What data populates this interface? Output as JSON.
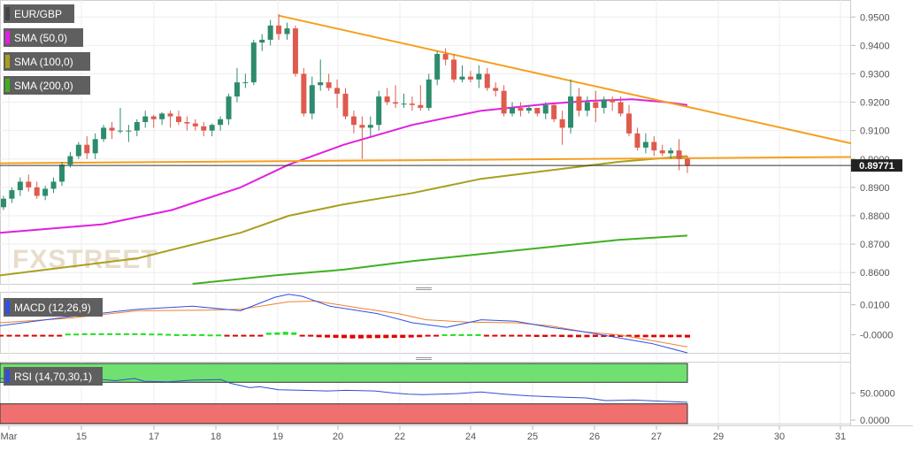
{
  "watermark": "FXSTREET",
  "colors": {
    "bull": "#2e8b6e",
    "bear": "#de5b4e",
    "sma50": "#e020e0",
    "sma100": "#a8a020",
    "sma200": "#40b020",
    "trend": "#f5a020",
    "macd": "#3050e0",
    "signal": "#f08030",
    "hist_pos": "#20e020",
    "hist_neg": "#e00000",
    "rsi": "#3050d0",
    "rsi_over": "#70e070",
    "rsi_under": "#f07070"
  },
  "chart_data": [
    {
      "type": "candlestick",
      "legend": [
        "EUR/GBP",
        "SMA (50,0)",
        "SMA (100,0)",
        "SMA (200,0)"
      ],
      "yticks": [
        "0.9500",
        "0.9400",
        "0.9300",
        "0.9200",
        "0.9100",
        "0.9000",
        "0.8900",
        "0.8800",
        "0.8700",
        "0.8600"
      ],
      "ylim": [
        0.856,
        0.956
      ],
      "last_price": "0.89771",
      "last_value": 0.89771,
      "x_range": [
        0,
        123
      ],
      "candles": [
        [
          0.883,
          0.887,
          0.882,
          0.886
        ],
        [
          0.886,
          0.89,
          0.8845,
          0.889
        ],
        [
          0.889,
          0.8935,
          0.887,
          0.892
        ],
        [
          0.892,
          0.8945,
          0.8885,
          0.89
        ],
        [
          0.89,
          0.892,
          0.886,
          0.887
        ],
        [
          0.887,
          0.8905,
          0.8855,
          0.8895
        ],
        [
          0.8895,
          0.8935,
          0.888,
          0.892
        ],
        [
          0.892,
          0.899,
          0.8905,
          0.898
        ],
        [
          0.898,
          0.9025,
          0.897,
          0.901
        ],
        [
          0.901,
          0.906,
          0.9,
          0.905
        ],
        [
          0.905,
          0.908,
          0.9,
          0.902
        ],
        [
          0.902,
          0.909,
          0.9,
          0.907
        ],
        [
          0.907,
          0.912,
          0.906,
          0.911
        ],
        [
          0.911,
          0.913,
          0.907,
          0.91
        ],
        [
          0.91,
          0.918,
          0.909,
          0.91
        ],
        [
          0.91,
          0.912,
          0.906,
          0.91
        ],
        [
          0.91,
          0.914,
          0.908,
          0.913
        ],
        [
          0.913,
          0.917,
          0.911,
          0.915
        ],
        [
          0.915,
          0.9155,
          0.911,
          0.914
        ],
        [
          0.914,
          0.9165,
          0.912,
          0.916
        ],
        [
          0.916,
          0.917,
          0.911,
          0.915
        ],
        [
          0.915,
          0.917,
          0.912,
          0.913
        ],
        [
          0.913,
          0.915,
          0.91,
          0.9125
        ],
        [
          0.9125,
          0.914,
          0.91,
          0.9115
        ],
        [
          0.9115,
          0.913,
          0.908,
          0.91
        ],
        [
          0.91,
          0.9125,
          0.908,
          0.912
        ],
        [
          0.912,
          0.915,
          0.91,
          0.914
        ],
        [
          0.914,
          0.923,
          0.912,
          0.922
        ],
        [
          0.922,
          0.932,
          0.92,
          0.927
        ],
        [
          0.927,
          0.93,
          0.925,
          0.927
        ],
        [
          0.927,
          0.942,
          0.926,
          0.941
        ],
        [
          0.941,
          0.944,
          0.938,
          0.942
        ],
        [
          0.942,
          0.949,
          0.94,
          0.947
        ],
        [
          0.947,
          0.951,
          0.942,
          0.944
        ],
        [
          0.944,
          0.948,
          0.942,
          0.946
        ],
        [
          0.946,
          0.947,
          0.929,
          0.93
        ],
        [
          0.93,
          0.932,
          0.915,
          0.916
        ],
        [
          0.916,
          0.929,
          0.914,
          0.926
        ],
        [
          0.926,
          0.935,
          0.924,
          0.927
        ],
        [
          0.927,
          0.93,
          0.924,
          0.925
        ],
        [
          0.925,
          0.928,
          0.918,
          0.923
        ],
        [
          0.923,
          0.925,
          0.914,
          0.915
        ],
        [
          0.915,
          0.917,
          0.909,
          0.912
        ],
        [
          0.912,
          0.915,
          0.9,
          0.911
        ],
        [
          0.911,
          0.915,
          0.908,
          0.912
        ],
        [
          0.912,
          0.924,
          0.91,
          0.922
        ],
        [
          0.922,
          0.925,
          0.919,
          0.92
        ],
        [
          0.92,
          0.926,
          0.918,
          0.9195
        ],
        [
          0.9195,
          0.923,
          0.918,
          0.9195
        ],
        [
          0.9195,
          0.922,
          0.917,
          0.919
        ],
        [
          0.919,
          0.926,
          0.917,
          0.918
        ],
        [
          0.918,
          0.93,
          0.917,
          0.928
        ],
        [
          0.928,
          0.938,
          0.926,
          0.937
        ],
        [
          0.937,
          0.939,
          0.933,
          0.935
        ],
        [
          0.935,
          0.937,
          0.927,
          0.928
        ],
        [
          0.928,
          0.933,
          0.927,
          0.929
        ],
        [
          0.929,
          0.931,
          0.927,
          0.928
        ],
        [
          0.928,
          0.933,
          0.925,
          0.93
        ],
        [
          0.93,
          0.932,
          0.924,
          0.925
        ],
        [
          0.925,
          0.927,
          0.922,
          0.924
        ],
        [
          0.924,
          0.926,
          0.915,
          0.916
        ],
        [
          0.916,
          0.92,
          0.915,
          0.918
        ],
        [
          0.918,
          0.92,
          0.915,
          0.917
        ],
        [
          0.917,
          0.919,
          0.916,
          0.918
        ],
        [
          0.918,
          0.918,
          0.915,
          0.916
        ],
        [
          0.916,
          0.92,
          0.914,
          0.919
        ],
        [
          0.919,
          0.92,
          0.913,
          0.914
        ],
        [
          0.914,
          0.917,
          0.905,
          0.911
        ],
        [
          0.911,
          0.928,
          0.909,
          0.922
        ],
        [
          0.922,
          0.925,
          0.915,
          0.917
        ],
        [
          0.917,
          0.922,
          0.915,
          0.92
        ],
        [
          0.92,
          0.924,
          0.913,
          0.918
        ],
        [
          0.918,
          0.922,
          0.916,
          0.921
        ],
        [
          0.921,
          0.922,
          0.917,
          0.92
        ],
        [
          0.92,
          0.922,
          0.915,
          0.916
        ],
        [
          0.916,
          0.919,
          0.908,
          0.909
        ],
        [
          0.909,
          0.911,
          0.903,
          0.904
        ],
        [
          0.904,
          0.909,
          0.902,
          0.906
        ],
        [
          0.906,
          0.908,
          0.901,
          0.903
        ],
        [
          0.903,
          0.905,
          0.901,
          0.902
        ],
        [
          0.902,
          0.904,
          0.9,
          0.903
        ],
        [
          0.903,
          0.907,
          0.896,
          0.9
        ],
        [
          0.9,
          0.901,
          0.895,
          0.8977
        ]
      ],
      "sma50": [
        [
          0,
          0.874
        ],
        [
          15,
          0.877
        ],
        [
          25,
          0.882
        ],
        [
          35,
          0.89
        ],
        [
          42,
          0.898
        ],
        [
          50,
          0.905
        ],
        [
          60,
          0.912
        ],
        [
          70,
          0.917
        ],
        [
          80,
          0.9195
        ],
        [
          86,
          0.9205
        ],
        [
          92,
          0.921
        ],
        [
          97,
          0.92
        ],
        [
          100,
          0.919
        ]
      ],
      "sma100": [
        [
          0,
          0.859
        ],
        [
          20,
          0.865
        ],
        [
          35,
          0.874
        ],
        [
          42,
          0.88
        ],
        [
          50,
          0.884
        ],
        [
          60,
          0.888
        ],
        [
          70,
          0.893
        ],
        [
          80,
          0.896
        ],
        [
          90,
          0.899
        ],
        [
          100,
          0.901
        ]
      ],
      "sma200": [
        [
          28,
          0.856
        ],
        [
          40,
          0.859
        ],
        [
          50,
          0.861
        ],
        [
          60,
          0.864
        ],
        [
          70,
          0.8665
        ],
        [
          80,
          0.869
        ],
        [
          90,
          0.8715
        ],
        [
          100,
          0.873
        ]
      ],
      "trendlines": [
        [
          [
            40.3,
            0.9505
          ],
          [
            123,
            0.9055
          ]
        ],
        [
          [
            0,
            0.8985
          ],
          [
            123,
            0.9007
          ]
        ]
      ]
    },
    {
      "type": "macd",
      "legend": "MACD (12,26,9)",
      "yticks": [
        "0.0100",
        "-0.0000"
      ],
      "ylim": [
        -0.006,
        0.014
      ],
      "macd": [
        [
          0,
          0.003
        ],
        [
          10,
          0.006
        ],
        [
          20,
          0.0085
        ],
        [
          28,
          0.0095
        ],
        [
          35,
          0.008
        ],
        [
          40,
          0.0125
        ],
        [
          42,
          0.0135
        ],
        [
          44,
          0.0128
        ],
        [
          48,
          0.0095
        ],
        [
          55,
          0.007
        ],
        [
          60,
          0.004
        ],
        [
          65,
          0.0025
        ],
        [
          70,
          0.005
        ],
        [
          75,
          0.0045
        ],
        [
          80,
          0.0025
        ],
        [
          85,
          0.001
        ],
        [
          90,
          -0.001
        ],
        [
          95,
          -0.003
        ],
        [
          100,
          -0.006
        ]
      ],
      "signal": [
        [
          0,
          0.004
        ],
        [
          10,
          0.0055
        ],
        [
          20,
          0.008
        ],
        [
          30,
          0.0082
        ],
        [
          35,
          0.0085
        ],
        [
          42,
          0.011
        ],
        [
          46,
          0.0112
        ],
        [
          52,
          0.009
        ],
        [
          58,
          0.007
        ],
        [
          62,
          0.005
        ],
        [
          68,
          0.0042
        ],
        [
          75,
          0.004
        ],
        [
          80,
          0.003
        ],
        [
          85,
          0.001
        ],
        [
          90,
          0.0
        ],
        [
          100,
          -0.004
        ]
      ],
      "histogram": [
        -0.0002,
        -0.0002,
        -0.0002,
        -0.0002,
        -0.0003,
        -0.0003,
        -0.0003,
        -0.0002,
        0.0004,
        0.0004,
        0.0005,
        0.0005,
        0.0005,
        0.0005,
        0.0005,
        0.0005,
        0.0005,
        0.0005,
        0.0004,
        0.0004,
        0.0003,
        0.0002,
        0.0002,
        0.0002,
        0.0002,
        0.0001,
        0.0001,
        -0.0001,
        -0.0002,
        -0.0003,
        -0.0004,
        -0.0004,
        0.0007,
        0.0008,
        0.001,
        0.0008,
        -0.0004,
        -0.0006,
        -0.0008,
        -0.0009,
        -0.001,
        -0.0011,
        -0.0012,
        -0.0012,
        -0.0011,
        -0.0011,
        -0.0011,
        -0.001,
        -0.001,
        -0.0009,
        -0.0008,
        -0.0005,
        -0.0004,
        0.0002,
        0.0002,
        0.0002,
        0.0002,
        0.0002,
        -0.0002,
        -0.0003,
        -0.0004,
        -0.0005,
        -0.0006,
        -0.0006,
        -0.0007,
        -0.0007,
        -0.0006,
        -0.0007,
        -0.0008,
        -0.0008,
        -0.0008,
        -0.0007,
        -0.0007,
        -0.0007,
        -0.0007,
        -0.0007,
        -0.0008,
        -0.0008,
        -0.0008,
        -0.0008,
        -0.0008,
        -0.0008,
        -0.0009
      ]
    },
    {
      "type": "rsi",
      "legend": "RSI (14,70,30,1)",
      "yticks": [
        "50.0000",
        "0.0000"
      ],
      "ylim": [
        0,
        100
      ],
      "overbought": 70,
      "oversold": 30,
      "rsi": [
        [
          0,
          77
        ],
        [
          10,
          78
        ],
        [
          20,
          76
        ],
        [
          24,
          73
        ],
        [
          28,
          77
        ],
        [
          30,
          72
        ],
        [
          35,
          71
        ],
        [
          40,
          74
        ],
        [
          46,
          75
        ],
        [
          48,
          68
        ],
        [
          52,
          60
        ],
        [
          54,
          62
        ],
        [
          58,
          56
        ],
        [
          63,
          55
        ],
        [
          68,
          54
        ],
        [
          72,
          55
        ],
        [
          78,
          54
        ],
        [
          82,
          50
        ],
        [
          85,
          48
        ],
        [
          88,
          47
        ],
        [
          95,
          49
        ],
        [
          100,
          52
        ],
        [
          105,
          48
        ],
        [
          110,
          45
        ],
        [
          115,
          43
        ],
        [
          122,
          41
        ],
        [
          126,
          36
        ],
        [
          132,
          37
        ],
        [
          140,
          34
        ],
        [
          143,
          33
        ]
      ],
      "rsi_x_range": [
        0,
        143
      ]
    }
  ],
  "x_axis": {
    "labels": [
      "Mar",
      "15",
      "17",
      "18",
      "19",
      "20",
      "22",
      "24",
      "25",
      "26",
      "27",
      "29",
      "30",
      "31"
    ]
  }
}
